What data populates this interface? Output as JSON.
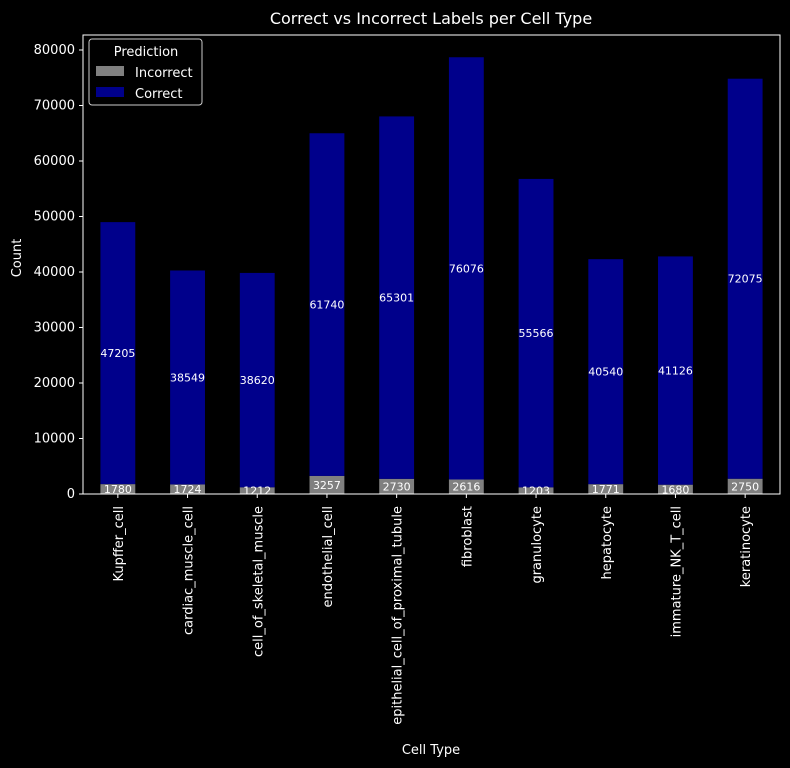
{
  "chart_data": {
    "type": "bar",
    "stacked": true,
    "title": "Correct vs Incorrect Labels per Cell Type",
    "xlabel": "Cell Type",
    "ylabel": "Count",
    "ylim": [
      0,
      82700
    ],
    "yticks": [
      0,
      10000,
      20000,
      30000,
      40000,
      50000,
      60000,
      70000,
      80000
    ],
    "categories": [
      "Kupffer_cell",
      "cardiac_muscle_cell",
      "cell_of_skeletal_muscle",
      "endothelial_cell",
      "epithelial_cell_of_proximal_tubule",
      "fibroblast",
      "granulocyte",
      "hepatocyte",
      "immature_NK_T_cell",
      "keratinocyte"
    ],
    "series": [
      {
        "name": "Incorrect",
        "color": "#808080",
        "values": [
          1780,
          1724,
          1212,
          3257,
          2730,
          2616,
          1203,
          1771,
          1680,
          2750
        ]
      },
      {
        "name": "Correct",
        "color": "#00008b",
        "values": [
          47205,
          38549,
          38620,
          61740,
          65301,
          76076,
          55566,
          40540,
          41126,
          72075
        ]
      }
    ],
    "legend": {
      "title": "Prediction",
      "position": "top-left"
    }
  }
}
